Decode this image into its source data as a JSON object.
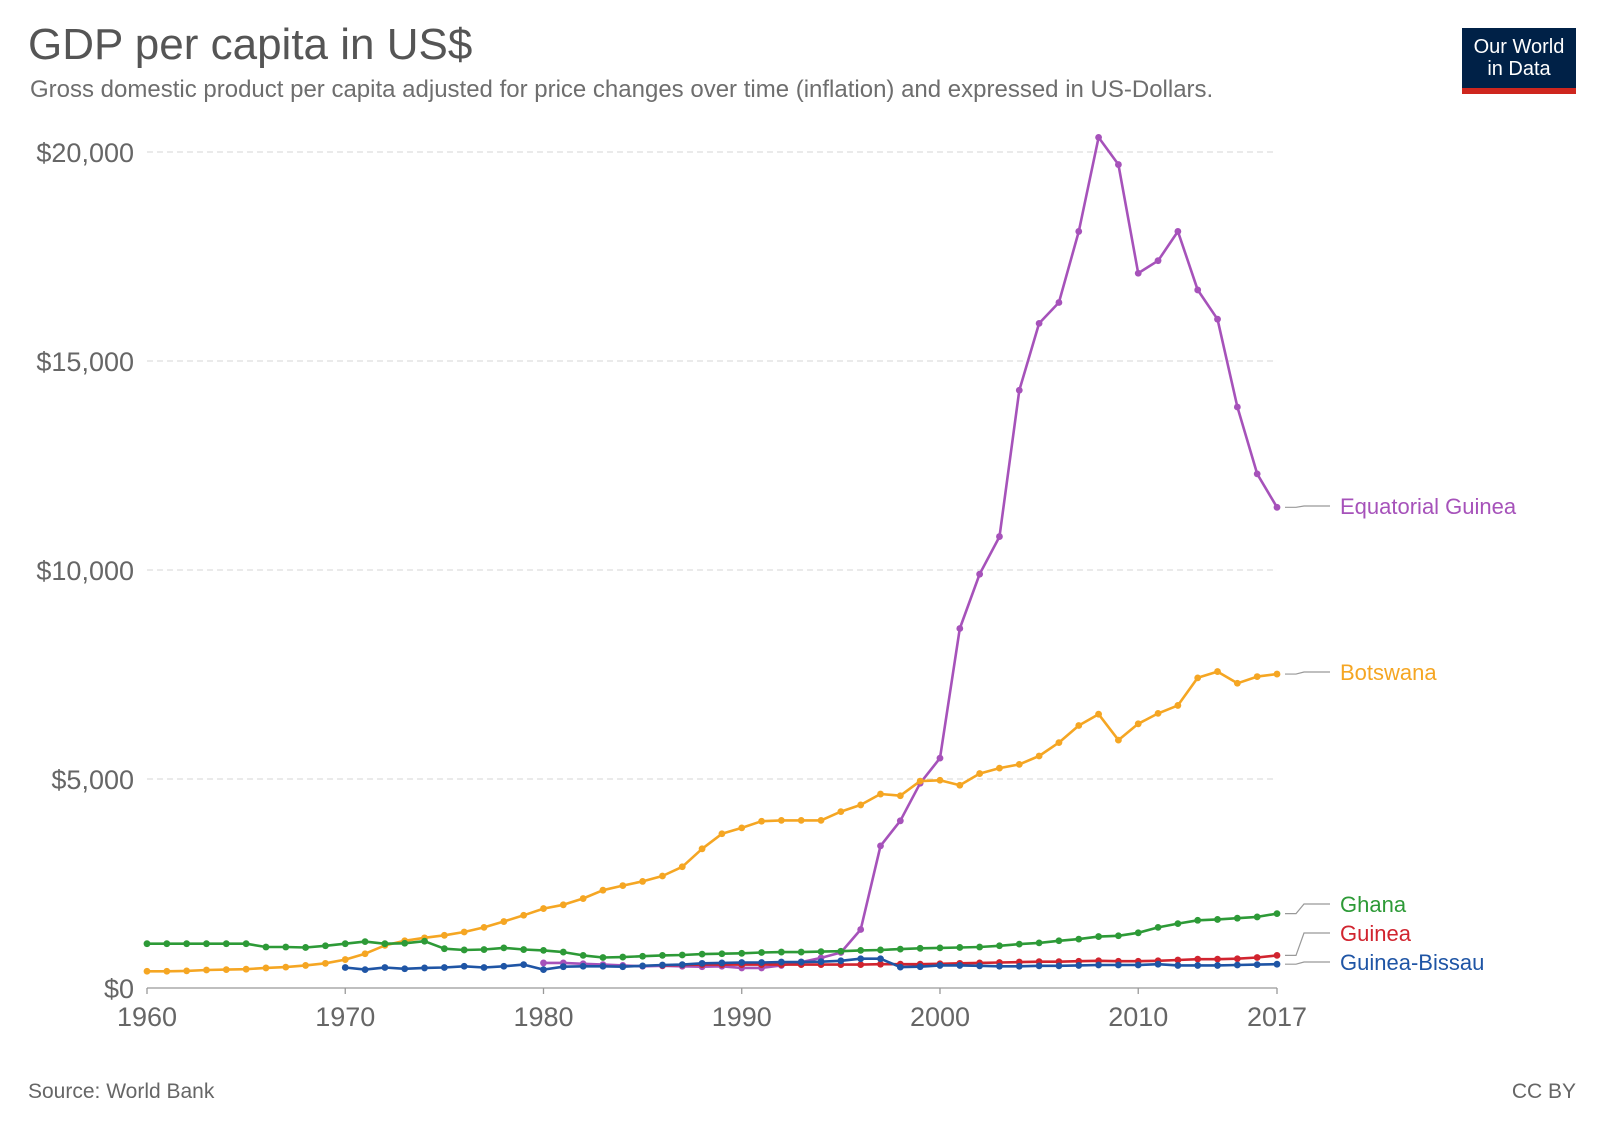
{
  "header": {
    "title": "GDP per capita in US$",
    "subtitle": "Gross domestic product per capita adjusted for price changes over time (inflation) and expressed in US-Dollars."
  },
  "logo": {
    "line1": "Our World",
    "line2": "in Data",
    "bg_color": "#002147",
    "accent_color": "#ce261e"
  },
  "footer": {
    "source": "Source: World Bank",
    "license": "CC BY"
  },
  "chart_data": {
    "type": "line",
    "title": "GDP per capita in US$",
    "xlim": [
      1960,
      2017
    ],
    "ylim": [
      0,
      20000
    ],
    "x_ticks": [
      1960,
      1970,
      1980,
      1990,
      2000,
      2010,
      2017
    ],
    "x_tick_labels": [
      "1960",
      "1970",
      "1980",
      "1990",
      "2000",
      "2010",
      "2017"
    ],
    "y_ticks": [
      0,
      5000,
      10000,
      15000,
      20000
    ],
    "y_tick_labels": [
      "$0",
      "$5,000",
      "$10,000",
      "$15,000",
      "$20,000"
    ],
    "grid": "horizontal dashed",
    "legend": "right, line labels",
    "series": [
      {
        "name": "Equatorial Guinea",
        "color": "#a652ba",
        "x": [
          1980,
          1981,
          1982,
          1983,
          1984,
          1985,
          1986,
          1987,
          1988,
          1989,
          1990,
          1991,
          1992,
          1993,
          1994,
          1995,
          1996,
          1997,
          1998,
          1999,
          2000,
          2001,
          2002,
          2003,
          2004,
          2005,
          2006,
          2007,
          2008,
          2009,
          2010,
          2011,
          2012,
          2013,
          2014,
          2015,
          2016,
          2017
        ],
        "y": [
          600,
          600,
          580,
          560,
          540,
          520,
          530,
          520,
          510,
          520,
          480,
          480,
          540,
          620,
          720,
          850,
          1400,
          3400,
          4000,
          4900,
          5500,
          8600,
          9900,
          10800,
          14300,
          15900,
          16400,
          18100,
          20350,
          19700,
          17100,
          17400,
          18100,
          16700,
          16000,
          13900,
          12300,
          11500
        ]
      },
      {
        "name": "Botswana",
        "color": "#f5a623",
        "x": [
          1960,
          1961,
          1962,
          1963,
          1964,
          1965,
          1966,
          1967,
          1968,
          1969,
          1970,
          1971,
          1972,
          1973,
          1974,
          1975,
          1976,
          1977,
          1978,
          1979,
          1980,
          1981,
          1982,
          1983,
          1984,
          1985,
          1986,
          1987,
          1988,
          1989,
          1990,
          1991,
          1992,
          1993,
          1994,
          1995,
          1996,
          1997,
          1998,
          1999,
          2000,
          2001,
          2002,
          2003,
          2004,
          2005,
          2006,
          2007,
          2008,
          2009,
          2010,
          2011,
          2012,
          2013,
          2014,
          2015,
          2016,
          2017
        ],
        "y": [
          400,
          400,
          410,
          430,
          440,
          450,
          480,
          500,
          540,
          590,
          680,
          820,
          1020,
          1130,
          1200,
          1260,
          1340,
          1450,
          1590,
          1740,
          1900,
          1990,
          2140,
          2340,
          2450,
          2550,
          2680,
          2900,
          3330,
          3690,
          3830,
          3990,
          4010,
          4010,
          4010,
          4220,
          4380,
          4640,
          4600,
          4950,
          4970,
          4850,
          5130,
          5260,
          5350,
          5550,
          5870,
          6280,
          6550,
          5930,
          6320,
          6570,
          6760,
          7420,
          7570,
          7290,
          7450,
          7510
        ]
      },
      {
        "name": "Ghana",
        "color": "#2d9a37",
        "x": [
          1960,
          1961,
          1962,
          1963,
          1964,
          1965,
          1966,
          1967,
          1968,
          1969,
          1970,
          1971,
          1972,
          1973,
          1974,
          1975,
          1976,
          1977,
          1978,
          1979,
          1980,
          1981,
          1982,
          1983,
          1984,
          1985,
          1986,
          1987,
          1988,
          1989,
          1990,
          1991,
          1992,
          1993,
          1994,
          1995,
          1996,
          1997,
          1998,
          1999,
          2000,
          2001,
          2002,
          2003,
          2004,
          2005,
          2006,
          2007,
          2008,
          2009,
          2010,
          2011,
          2012,
          2013,
          2014,
          2015,
          2016,
          2017
        ],
        "y": [
          1060,
          1060,
          1060,
          1060,
          1060,
          1060,
          980,
          980,
          970,
          1010,
          1060,
          1110,
          1060,
          1070,
          1120,
          940,
          910,
          920,
          960,
          920,
          900,
          860,
          780,
          730,
          740,
          760,
          780,
          790,
          810,
          820,
          830,
          850,
          860,
          860,
          870,
          880,
          900,
          910,
          930,
          950,
          960,
          970,
          980,
          1010,
          1050,
          1080,
          1130,
          1170,
          1230,
          1250,
          1320,
          1450,
          1540,
          1620,
          1640,
          1670,
          1700,
          1780
        ]
      },
      {
        "name": "Guinea",
        "color": "#d1242f",
        "x": [
          1986,
          1987,
          1988,
          1989,
          1990,
          1991,
          1992,
          1993,
          1994,
          1995,
          1996,
          1997,
          1998,
          1999,
          2000,
          2001,
          2002,
          2003,
          2004,
          2005,
          2006,
          2007,
          2008,
          2009,
          2010,
          2011,
          2012,
          2013,
          2014,
          2015,
          2016,
          2017
        ],
        "y": [
          540,
          550,
          560,
          560,
          560,
          560,
          560,
          560,
          560,
          560,
          560,
          570,
          570,
          570,
          580,
          590,
          600,
          610,
          620,
          630,
          630,
          640,
          650,
          640,
          640,
          650,
          670,
          690,
          690,
          700,
          730,
          780
        ]
      },
      {
        "name": "Guinea-Bissau",
        "color": "#1f55a5",
        "x": [
          1970,
          1971,
          1972,
          1973,
          1974,
          1975,
          1976,
          1977,
          1978,
          1979,
          1980,
          1981,
          1982,
          1983,
          1984,
          1985,
          1986,
          1987,
          1988,
          1989,
          1990,
          1991,
          1992,
          1993,
          1994,
          1995,
          1996,
          1997,
          1998,
          1999,
          2000,
          2001,
          2002,
          2003,
          2004,
          2005,
          2006,
          2007,
          2008,
          2009,
          2010,
          2011,
          2012,
          2013,
          2014,
          2015,
          2016,
          2017
        ],
        "y": [
          490,
          440,
          490,
          460,
          480,
          490,
          520,
          490,
          520,
          560,
          440,
          510,
          520,
          520,
          510,
          530,
          550,
          560,
          590,
          600,
          610,
          610,
          620,
          620,
          630,
          650,
          700,
          700,
          500,
          510,
          540,
          540,
          530,
          520,
          520,
          530,
          530,
          540,
          550,
          550,
          550,
          570,
          540,
          540,
          540,
          550,
          560,
          570
        ]
      }
    ]
  }
}
